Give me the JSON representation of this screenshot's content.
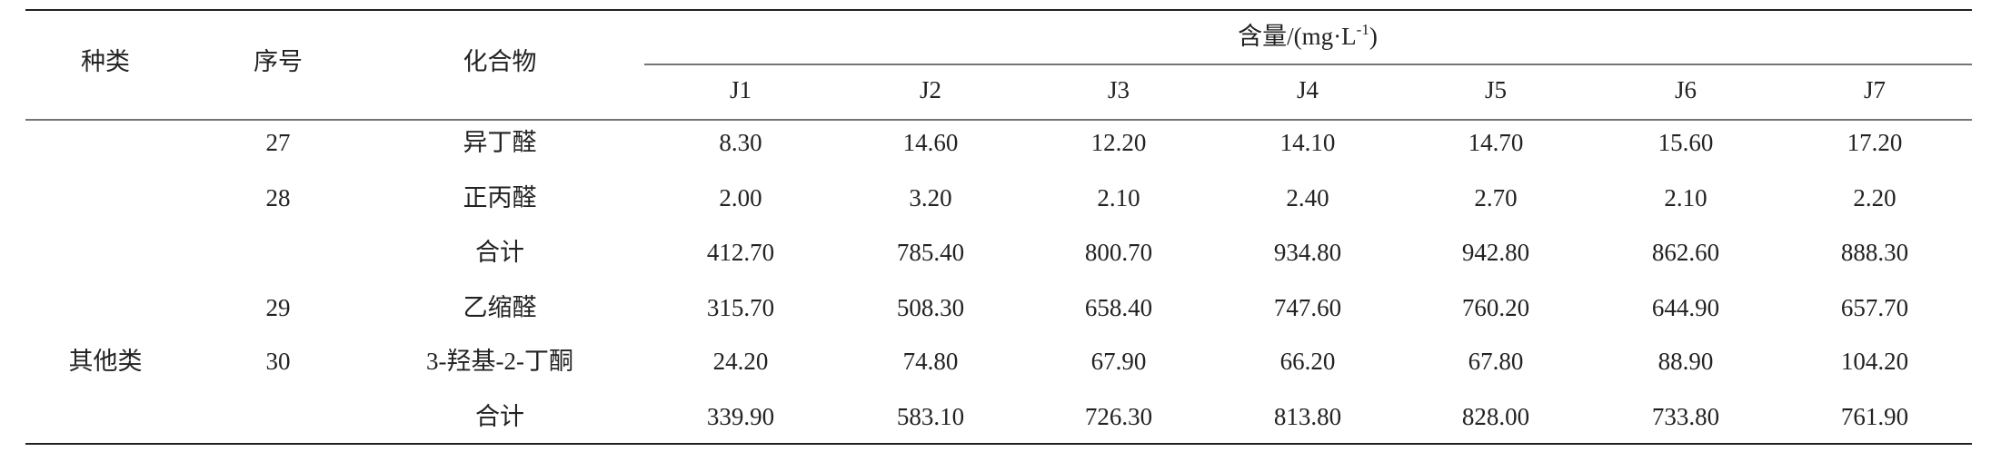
{
  "table": {
    "headers": {
      "category": "种类",
      "seq": "序号",
      "compound": "化合物",
      "content": "含量/(mg·L",
      "content_sup": "-1",
      "content_close": ")",
      "columns": [
        "J1",
        "J2",
        "J3",
        "J4",
        "J5",
        "J6",
        "J7"
      ]
    },
    "category": "其他类",
    "rows": [
      {
        "seq": "27",
        "compound": "异丁醛",
        "values": [
          "8.30",
          "14.60",
          "12.20",
          "14.10",
          "14.70",
          "15.60",
          "17.20"
        ]
      },
      {
        "seq": "28",
        "compound": "正丙醛",
        "values": [
          "2.00",
          "3.20",
          "2.10",
          "2.40",
          "2.70",
          "2.10",
          "2.20"
        ]
      },
      {
        "compound": "合计",
        "values": [
          "412.70",
          "785.40",
          "800.70",
          "934.80",
          "942.80",
          "862.60",
          "888.30"
        ]
      },
      {
        "seq": "29",
        "compound": "乙缩醛",
        "values": [
          "315.70",
          "508.30",
          "658.40",
          "747.60",
          "760.20",
          "644.90",
          "657.70"
        ]
      },
      {
        "seq": "30",
        "compound": "3-羟基-2-丁酮",
        "values": [
          "24.20",
          "74.80",
          "67.90",
          "66.20",
          "67.80",
          "88.90",
          "104.20"
        ]
      },
      {
        "compound": "合计",
        "values": [
          "339.90",
          "583.10",
          "726.30",
          "813.80",
          "828.00",
          "733.80",
          "761.90"
        ]
      }
    ]
  }
}
